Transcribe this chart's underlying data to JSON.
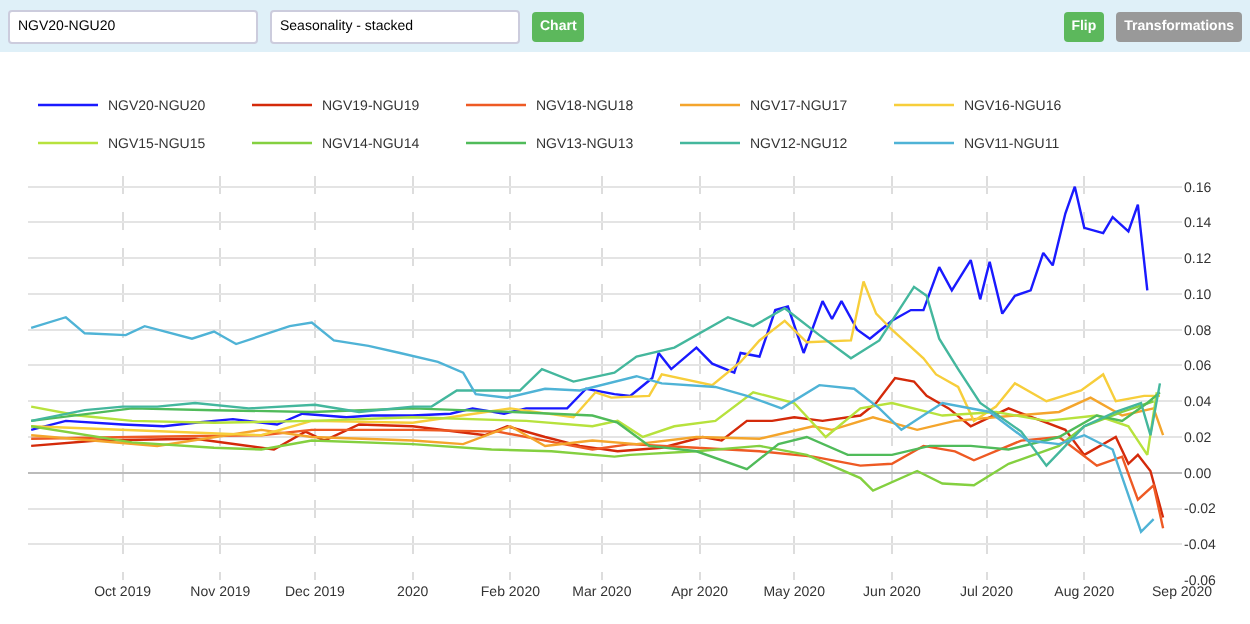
{
  "chart_data": {
    "type": "line",
    "annotations": [
      "NGV20-NGU20",
      "Seasonality - stacked",
      "Chart",
      "Flip",
      "Transformations"
    ],
    "legend": "top",
    "grid": true,
    "xlim": [
      "2019-09-01",
      "2020-09-01"
    ],
    "xticks": [
      {
        "value": "2019-10-01",
        "label": "Oct 2019"
      },
      {
        "value": "2019-11-01",
        "label": "Nov 2019"
      },
      {
        "value": "2019-12-01",
        "label": "Dec 2019"
      },
      {
        "value": "2020-01-01",
        "label": "2020"
      },
      {
        "value": "2020-02-01",
        "label": "Feb 2020"
      },
      {
        "value": "2020-03-01",
        "label": "Mar 2020"
      },
      {
        "value": "2020-04-01",
        "label": "Apr 2020"
      },
      {
        "value": "2020-05-01",
        "label": "May 2020"
      },
      {
        "value": "2020-06-01",
        "label": "Jun 2020"
      },
      {
        "value": "2020-07-01",
        "label": "Jul 2020"
      },
      {
        "value": "2020-08-01",
        "label": "Aug 2020"
      },
      {
        "value": "2020-09-01",
        "label": "Sep 2020"
      }
    ],
    "ylim": [
      -0.06,
      0.166
    ],
    "yticks": [
      -0.06,
      -0.04,
      -0.02,
      {
        "value": 0,
        "label": "0.00"
      },
      0.02,
      0.04,
      0.06,
      0.08,
      {
        "value": 0.1,
        "label": "0.10"
      },
      0.12,
      0.14,
      0.16
    ],
    "series": [
      {
        "name": "NGV20-NGU20",
        "color": "#1a1aff",
        "x": [
          "2019-09-02",
          "2019-09-13",
          "2019-10-01",
          "2019-10-14",
          "2019-10-24",
          "2019-11-05",
          "2019-11-19",
          "2019-11-27",
          "2019-12-11",
          "2019-12-19",
          "2020-01-01",
          "2020-01-13",
          "2020-01-20",
          "2020-01-30",
          "2020-02-06",
          "2020-02-19",
          "2020-02-25",
          "2020-03-05",
          "2020-03-10",
          "2020-03-17",
          "2020-03-19",
          "2020-03-23",
          "2020-03-31",
          "2020-04-05",
          "2020-04-12",
          "2020-04-14",
          "2020-04-20",
          "2020-04-25",
          "2020-04-29",
          "2020-05-04",
          "2020-05-10",
          "2020-05-13",
          "2020-05-16",
          "2020-05-21",
          "2020-05-25",
          "2020-06-01",
          "2020-06-07",
          "2020-06-11",
          "2020-06-16",
          "2020-06-20",
          "2020-06-26",
          "2020-06-29",
          "2020-07-02",
          "2020-07-06",
          "2020-07-10",
          "2020-07-15",
          "2020-07-19",
          "2020-07-22",
          "2020-07-26",
          "2020-07-29",
          "2020-08-01",
          "2020-08-07",
          "2020-08-10",
          "2020-08-15",
          "2020-08-18",
          "2020-08-21"
        ],
        "values": [
          0.024,
          0.029,
          0.027,
          0.026,
          0.028,
          0.03,
          0.027,
          0.033,
          0.031,
          0.032,
          0.032,
          0.033,
          0.036,
          0.033,
          0.036,
          0.036,
          0.047,
          0.044,
          0.043,
          0.053,
          0.067,
          0.058,
          0.07,
          0.061,
          0.056,
          0.067,
          0.065,
          0.091,
          0.093,
          0.067,
          0.096,
          0.086,
          0.096,
          0.08,
          0.075,
          0.085,
          0.091,
          0.091,
          0.115,
          0.102,
          0.119,
          0.097,
          0.118,
          0.089,
          0.099,
          0.102,
          0.123,
          0.116,
          0.145,
          0.16,
          0.137,
          0.134,
          0.143,
          0.135,
          0.15,
          0.102
        ]
      },
      {
        "name": "NGV19-NGU19",
        "color": "#d42a0a",
        "x": [
          "2019-09-02",
          "2019-09-23",
          "2019-10-24",
          "2019-11-18",
          "2019-11-28",
          "2019-12-04",
          "2019-12-15",
          "2020-01-01",
          "2020-01-24",
          "2020-01-31",
          "2020-02-12",
          "2020-02-23",
          "2020-03-06",
          "2020-03-20",
          "2020-04-02",
          "2020-04-08",
          "2020-04-16",
          "2020-04-24",
          "2020-05-01",
          "2020-05-10",
          "2020-05-22",
          "2020-05-27",
          "2020-06-02",
          "2020-06-08",
          "2020-06-12",
          "2020-06-19",
          "2020-06-26",
          "2020-07-08",
          "2020-07-20",
          "2020-07-26",
          "2020-08-01",
          "2020-08-11",
          "2020-08-15",
          "2020-08-18",
          "2020-08-22",
          "2020-08-26"
        ],
        "values": [
          0.015,
          0.018,
          0.019,
          0.013,
          0.023,
          0.018,
          0.027,
          0.026,
          0.021,
          0.026,
          0.02,
          0.015,
          0.012,
          0.014,
          0.02,
          0.018,
          0.029,
          0.029,
          0.031,
          0.029,
          0.032,
          0.039,
          0.053,
          0.051,
          0.043,
          0.036,
          0.026,
          0.036,
          0.028,
          0.024,
          0.01,
          0.02,
          0.005,
          0.01,
          0.001,
          -0.025
        ]
      },
      {
        "name": "NGV18-NGU18",
        "color": "#ee5a24",
        "x": [
          "2019-09-02",
          "2019-10-04",
          "2019-11-14",
          "2019-11-30",
          "2020-01-01",
          "2020-01-28",
          "2020-02-12",
          "2020-02-27",
          "2020-03-10",
          "2020-03-31",
          "2020-04-20",
          "2020-05-07",
          "2020-05-22",
          "2020-06-01",
          "2020-06-11",
          "2020-06-21",
          "2020-06-27",
          "2020-07-12",
          "2020-07-24",
          "2020-08-05",
          "2020-08-13",
          "2020-08-18",
          "2020-08-23",
          "2020-08-26"
        ],
        "values": [
          0.019,
          0.02,
          0.021,
          0.024,
          0.024,
          0.023,
          0.018,
          0.013,
          0.016,
          0.014,
          0.012,
          0.009,
          0.004,
          0.005,
          0.015,
          0.012,
          0.007,
          0.018,
          0.02,
          0.004,
          0.009,
          -0.015,
          -0.007,
          -0.031
        ]
      },
      {
        "name": "NGV17-NGU17",
        "color": "#f4a52c",
        "x": [
          "2019-09-02",
          "2019-10-12",
          "2019-11-14",
          "2019-11-30",
          "2020-01-01",
          "2020-01-17",
          "2020-02-01",
          "2020-02-12",
          "2020-02-27",
          "2020-03-12",
          "2020-03-31",
          "2020-04-20",
          "2020-05-07",
          "2020-05-13",
          "2020-05-26",
          "2020-06-09",
          "2020-06-21",
          "2020-07-10",
          "2020-07-24",
          "2020-08-03",
          "2020-08-13",
          "2020-08-23",
          "2020-08-26"
        ],
        "values": [
          0.021,
          0.015,
          0.024,
          0.02,
          0.018,
          0.016,
          0.026,
          0.015,
          0.018,
          0.016,
          0.02,
          0.019,
          0.026,
          0.024,
          0.031,
          0.024,
          0.029,
          0.032,
          0.034,
          0.042,
          0.032,
          0.036,
          0.021
        ]
      },
      {
        "name": "NGV16-NGU16",
        "color": "#f7ce3b",
        "x": [
          "2019-09-02",
          "2019-11-14",
          "2019-11-30",
          "2020-01-01",
          "2020-02-01",
          "2020-02-21",
          "2020-02-28",
          "2020-03-04",
          "2020-03-16",
          "2020-03-20",
          "2020-04-05",
          "2020-04-14",
          "2020-04-20",
          "2020-04-28",
          "2020-05-05",
          "2020-05-19",
          "2020-05-23",
          "2020-05-27",
          "2020-06-01",
          "2020-06-11",
          "2020-06-15",
          "2020-06-22",
          "2020-06-27",
          "2020-07-04",
          "2020-07-10",
          "2020-07-20",
          "2020-07-31",
          "2020-08-07",
          "2020-08-11",
          "2020-08-20",
          "2020-08-25"
        ],
        "values": [
          0.026,
          0.021,
          0.029,
          0.028,
          0.036,
          0.031,
          0.045,
          0.042,
          0.043,
          0.055,
          0.049,
          0.062,
          0.074,
          0.085,
          0.073,
          0.074,
          0.107,
          0.089,
          0.08,
          0.064,
          0.055,
          0.048,
          0.029,
          0.037,
          0.05,
          0.04,
          0.046,
          0.055,
          0.04,
          0.043,
          0.043
        ]
      },
      {
        "name": "NGV15-NGU15",
        "color": "#b7e23d",
        "x": [
          "2019-09-02",
          "2019-09-17",
          "2019-10-04",
          "2019-10-30",
          "2019-11-30",
          "2020-01-01",
          "2020-02-06",
          "2020-02-27",
          "2020-03-06",
          "2020-03-14",
          "2020-03-24",
          "2020-04-06",
          "2020-04-18",
          "2020-05-01",
          "2020-05-11",
          "2020-05-22",
          "2020-06-01",
          "2020-06-17",
          "2020-07-04",
          "2020-07-20",
          "2020-08-05",
          "2020-08-15",
          "2020-08-21",
          "2020-08-24"
        ],
        "values": [
          0.037,
          0.032,
          0.029,
          0.028,
          0.029,
          0.031,
          0.029,
          0.026,
          0.029,
          0.02,
          0.026,
          0.029,
          0.045,
          0.039,
          0.02,
          0.036,
          0.039,
          0.032,
          0.034,
          0.029,
          0.032,
          0.026,
          0.01,
          0.045
        ]
      },
      {
        "name": "NGV14-NGU14",
        "color": "#84d040",
        "x": [
          "2019-09-02",
          "2019-10-04",
          "2019-10-30",
          "2019-11-14",
          "2019-11-30",
          "2020-01-01",
          "2020-01-26",
          "2020-02-14",
          "2020-03-05",
          "2020-03-10",
          "2020-03-31",
          "2020-04-20",
          "2020-05-05",
          "2020-05-22",
          "2020-05-26",
          "2020-06-09",
          "2020-06-17",
          "2020-06-27",
          "2020-07-08",
          "2020-07-24",
          "2020-08-01",
          "2020-08-13",
          "2020-08-23"
        ],
        "values": [
          0.026,
          0.017,
          0.014,
          0.013,
          0.018,
          0.016,
          0.013,
          0.012,
          0.009,
          0.01,
          0.012,
          0.015,
          0.01,
          -0.003,
          -0.01,
          0.001,
          -0.006,
          -0.007,
          0.005,
          0.015,
          0.026,
          0.034,
          0.04
        ]
      },
      {
        "name": "NGV13-NGU13",
        "color": "#50bb5a",
        "x": [
          "2019-09-02",
          "2019-10-04",
          "2019-10-30",
          "2019-11-30",
          "2020-01-01",
          "2020-02-02",
          "2020-02-27",
          "2020-03-06",
          "2020-03-16",
          "2020-03-31",
          "2020-04-16",
          "2020-04-26",
          "2020-05-05",
          "2020-05-18",
          "2020-06-01",
          "2020-06-13",
          "2020-06-26",
          "2020-07-08",
          "2020-07-24",
          "2020-08-05",
          "2020-08-13",
          "2020-08-21",
          "2020-08-25"
        ],
        "values": [
          0.029,
          0.036,
          0.035,
          0.034,
          0.036,
          0.034,
          0.032,
          0.028,
          0.015,
          0.012,
          0.002,
          0.016,
          0.02,
          0.01,
          0.01,
          0.015,
          0.015,
          0.013,
          0.02,
          0.032,
          0.029,
          0.039,
          0.045
        ]
      },
      {
        "name": "NGV12-NGU12",
        "color": "#44b79d",
        "x": [
          "2019-09-02",
          "2019-09-19",
          "2019-10-01",
          "2019-10-12",
          "2019-10-24",
          "2019-11-10",
          "2019-12-01",
          "2019-12-15",
          "2020-01-01",
          "2020-01-07",
          "2020-01-15",
          "2020-01-26",
          "2020-02-04",
          "2020-02-11",
          "2020-02-21",
          "2020-03-05",
          "2020-03-12",
          "2020-03-24",
          "2020-04-10",
          "2020-04-18",
          "2020-04-28",
          "2020-05-09",
          "2020-05-19",
          "2020-05-28",
          "2020-06-08",
          "2020-06-12",
          "2020-06-16",
          "2020-06-22",
          "2020-06-29",
          "2020-07-12",
          "2020-07-20",
          "2020-08-01",
          "2020-08-11",
          "2020-08-19",
          "2020-08-22",
          "2020-08-25"
        ],
        "values": [
          0.029,
          0.035,
          0.037,
          0.037,
          0.039,
          0.036,
          0.038,
          0.034,
          0.037,
          0.037,
          0.046,
          0.046,
          0.046,
          0.058,
          0.051,
          0.056,
          0.065,
          0.07,
          0.087,
          0.082,
          0.092,
          0.077,
          0.064,
          0.074,
          0.104,
          0.099,
          0.075,
          0.058,
          0.039,
          0.023,
          0.004,
          0.026,
          0.034,
          0.039,
          0.021,
          0.05
        ]
      },
      {
        "name": "NGV11-NGU11",
        "color": "#4fb3d6",
        "x": [
          "2019-09-02",
          "2019-09-13",
          "2019-09-19",
          "2019-10-02",
          "2019-10-08",
          "2019-10-23",
          "2019-10-30",
          "2019-11-06",
          "2019-11-23",
          "2019-11-30",
          "2019-12-07",
          "2019-12-18",
          "2019-12-28",
          "2020-01-09",
          "2020-01-17",
          "2020-01-21",
          "2020-01-31",
          "2020-02-12",
          "2020-02-23",
          "2020-03-12",
          "2020-03-20",
          "2020-04-06",
          "2020-04-16",
          "2020-04-27",
          "2020-05-09",
          "2020-05-20",
          "2020-05-28",
          "2020-06-04",
          "2020-06-17",
          "2020-07-02",
          "2020-07-14",
          "2020-07-24",
          "2020-08-01",
          "2020-08-10",
          "2020-08-19",
          "2020-08-23"
        ],
        "values": [
          0.081,
          0.087,
          0.078,
          0.077,
          0.082,
          0.075,
          0.079,
          0.072,
          0.082,
          0.084,
          0.074,
          0.071,
          0.067,
          0.062,
          0.056,
          0.044,
          0.042,
          0.047,
          0.046,
          0.054,
          0.05,
          0.048,
          0.043,
          0.036,
          0.049,
          0.047,
          0.036,
          0.024,
          0.039,
          0.034,
          0.018,
          0.016,
          0.021,
          0.013,
          -0.033,
          -0.026
        ]
      }
    ]
  }
}
